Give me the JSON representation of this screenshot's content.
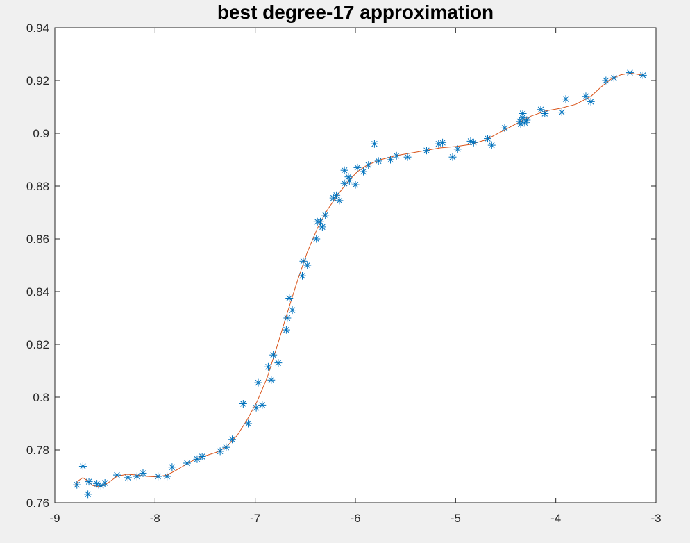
{
  "chart_data": {
    "type": "scatter",
    "title": "best degree-17 approximation",
    "xlabel": "",
    "ylabel": "",
    "xlim": [
      -9,
      -3
    ],
    "ylim": [
      0.76,
      0.94
    ],
    "x_ticks": [
      -9,
      -8,
      -7,
      -6,
      -5,
      -4,
      -3
    ],
    "x_tick_labels": [
      "-9",
      "-8",
      "-7",
      "-6",
      "-5",
      "-4",
      "-3"
    ],
    "y_ticks": [
      0.76,
      0.78,
      0.8,
      0.82,
      0.84,
      0.86,
      0.88,
      0.9,
      0.92,
      0.94
    ],
    "y_tick_labels": [
      "0.76",
      "0.78",
      "0.8",
      "0.82",
      "0.84",
      "0.86",
      "0.88",
      "0.9",
      "0.92",
      "0.94"
    ],
    "grid": false,
    "series": [
      {
        "type": "scatter",
        "marker": "asterisk",
        "color": "#0072BD",
        "points": [
          [
            -8.78,
            0.7668
          ],
          [
            -8.72,
            0.7738
          ],
          [
            -8.67,
            0.7632
          ],
          [
            -8.66,
            0.768
          ],
          [
            -8.58,
            0.7672
          ],
          [
            -8.54,
            0.7665
          ],
          [
            -8.5,
            0.7675
          ],
          [
            -8.38,
            0.7705
          ],
          [
            -8.27,
            0.7695
          ],
          [
            -8.18,
            0.77
          ],
          [
            -8.12,
            0.7712
          ],
          [
            -7.97,
            0.77
          ],
          [
            -7.88,
            0.77
          ],
          [
            -7.83,
            0.7735
          ],
          [
            -7.68,
            0.775
          ],
          [
            -7.58,
            0.7765
          ],
          [
            -7.53,
            0.7775
          ],
          [
            -7.35,
            0.7795
          ],
          [
            -7.29,
            0.781
          ],
          [
            -7.23,
            0.784
          ],
          [
            -7.12,
            0.7975
          ],
          [
            -7.07,
            0.79
          ],
          [
            -6.99,
            0.796
          ],
          [
            -6.97,
            0.8055
          ],
          [
            -6.93,
            0.797
          ],
          [
            -6.87,
            0.8115
          ],
          [
            -6.84,
            0.8065
          ],
          [
            -6.82,
            0.816
          ],
          [
            -6.77,
            0.813
          ],
          [
            -6.69,
            0.8255
          ],
          [
            -6.68,
            0.83
          ],
          [
            -6.66,
            0.8375
          ],
          [
            -6.63,
            0.833
          ],
          [
            -6.53,
            0.846
          ],
          [
            -6.52,
            0.8515
          ],
          [
            -6.48,
            0.85
          ],
          [
            -6.39,
            0.86
          ],
          [
            -6.38,
            0.8665
          ],
          [
            -6.35,
            0.8665
          ],
          [
            -6.33,
            0.8645
          ],
          [
            -6.3,
            0.869
          ],
          [
            -6.22,
            0.8755
          ],
          [
            -6.19,
            0.8765
          ],
          [
            -6.16,
            0.8745
          ],
          [
            -6.11,
            0.881
          ],
          [
            -6.11,
            0.886
          ],
          [
            -6.07,
            0.8835
          ],
          [
            -6.06,
            0.882
          ],
          [
            -6.0,
            0.8805
          ],
          [
            -5.98,
            0.887
          ],
          [
            -5.92,
            0.8855
          ],
          [
            -5.87,
            0.888
          ],
          [
            -5.81,
            0.896
          ],
          [
            -5.77,
            0.8895
          ],
          [
            -5.65,
            0.89
          ],
          [
            -5.59,
            0.8915
          ],
          [
            -5.48,
            0.891
          ],
          [
            -5.29,
            0.8935
          ],
          [
            -5.17,
            0.896
          ],
          [
            -5.13,
            0.8965
          ],
          [
            -5.03,
            0.891
          ],
          [
            -4.98,
            0.894
          ],
          [
            -4.85,
            0.897
          ],
          [
            -4.82,
            0.8965
          ],
          [
            -4.68,
            0.898
          ],
          [
            -4.64,
            0.8955
          ],
          [
            -4.51,
            0.902
          ],
          [
            -4.36,
            0.9045
          ],
          [
            -4.35,
            0.9035
          ],
          [
            -4.33,
            0.906
          ],
          [
            -4.33,
            0.9075
          ],
          [
            -4.31,
            0.904
          ],
          [
            -4.29,
            0.905
          ],
          [
            -4.15,
            0.909
          ],
          [
            -4.11,
            0.9075
          ],
          [
            -3.94,
            0.908
          ],
          [
            -3.9,
            0.913
          ],
          [
            -3.7,
            0.914
          ],
          [
            -3.65,
            0.912
          ],
          [
            -3.5,
            0.92
          ],
          [
            -3.42,
            0.921
          ],
          [
            -3.26,
            0.923
          ],
          [
            -3.13,
            0.922
          ]
        ]
      },
      {
        "type": "line",
        "color": "#D95319",
        "points": [
          [
            -8.8,
            0.7665
          ],
          [
            -8.76,
            0.7685
          ],
          [
            -8.72,
            0.7695
          ],
          [
            -8.68,
            0.7685
          ],
          [
            -8.62,
            0.7665
          ],
          [
            -8.55,
            0.766
          ],
          [
            -8.47,
            0.7675
          ],
          [
            -8.38,
            0.77
          ],
          [
            -8.28,
            0.7708
          ],
          [
            -8.18,
            0.7705
          ],
          [
            -8.08,
            0.77
          ],
          [
            -7.98,
            0.7698
          ],
          [
            -7.88,
            0.7705
          ],
          [
            -7.78,
            0.7725
          ],
          [
            -7.68,
            0.7748
          ],
          [
            -7.58,
            0.7768
          ],
          [
            -7.48,
            0.778
          ],
          [
            -7.38,
            0.7792
          ],
          [
            -7.28,
            0.7815
          ],
          [
            -7.18,
            0.7855
          ],
          [
            -7.08,
            0.7915
          ],
          [
            -6.98,
            0.7985
          ],
          [
            -6.88,
            0.8075
          ],
          [
            -6.78,
            0.8195
          ],
          [
            -6.68,
            0.832
          ],
          [
            -6.58,
            0.844
          ],
          [
            -6.48,
            0.855
          ],
          [
            -6.38,
            0.864
          ],
          [
            -6.28,
            0.871
          ],
          [
            -6.18,
            0.8765
          ],
          [
            -6.08,
            0.8815
          ],
          [
            -5.98,
            0.8855
          ],
          [
            -5.88,
            0.888
          ],
          [
            -5.75,
            0.89
          ],
          [
            -5.6,
            0.8915
          ],
          [
            -5.45,
            0.8925
          ],
          [
            -5.3,
            0.8935
          ],
          [
            -5.15,
            0.8945
          ],
          [
            -5.0,
            0.895
          ],
          [
            -4.85,
            0.8958
          ],
          [
            -4.7,
            0.8975
          ],
          [
            -4.55,
            0.9005
          ],
          [
            -4.4,
            0.9035
          ],
          [
            -4.25,
            0.9065
          ],
          [
            -4.1,
            0.9085
          ],
          [
            -3.95,
            0.9095
          ],
          [
            -3.8,
            0.911
          ],
          [
            -3.65,
            0.914
          ],
          [
            -3.55,
            0.9175
          ],
          [
            -3.45,
            0.9205
          ],
          [
            -3.35,
            0.9222
          ],
          [
            -3.25,
            0.9228
          ],
          [
            -3.13,
            0.922
          ]
        ]
      }
    ]
  }
}
